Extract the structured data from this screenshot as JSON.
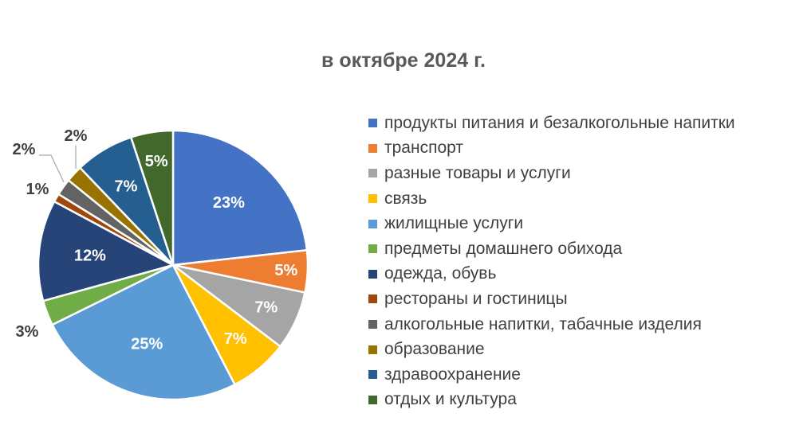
{
  "chart_data": {
    "type": "pie",
    "title": "в октябре 2024 г.",
    "slices": [
      {
        "name": "продукты питания и безалкогольные напитки",
        "value": 23,
        "label": "23%",
        "color": "#4472C4"
      },
      {
        "name": "транспорт",
        "value": 5,
        "label": "5%",
        "color": "#ED7D31"
      },
      {
        "name": "разные товары и услуги",
        "value": 7,
        "label": "7%",
        "color": "#A5A5A5"
      },
      {
        "name": "связь",
        "value": 7,
        "label": "7%",
        "color": "#FFC000"
      },
      {
        "name": "жилищные услуги",
        "value": 25,
        "label": "25%",
        "color": "#5B9BD5"
      },
      {
        "name": "предметы домашнего обихода",
        "value": 3,
        "label": "3%",
        "color": "#70AD47"
      },
      {
        "name": "одежда, обувь",
        "value": 12,
        "label": "12%",
        "color": "#264478"
      },
      {
        "name": "рестораны и гостиницы",
        "value": 1,
        "label": "1%",
        "color": "#9E480E"
      },
      {
        "name": "алкогольные напитки, табачные изделия",
        "value": 2,
        "label": "2%",
        "color": "#636363"
      },
      {
        "name": "образование",
        "value": 2,
        "label": "2%",
        "color": "#997300"
      },
      {
        "name": "здравоохранение",
        "value": 7,
        "label": "7%",
        "color": "#255E91"
      },
      {
        "name": "отдых и культура",
        "value": 5,
        "label": "5%",
        "color": "#43682B"
      }
    ],
    "start_angle": "12 o'clock, clockwise",
    "legend_position": "right",
    "data_labels": "percent, white inside large slices, dark outside small slices"
  }
}
